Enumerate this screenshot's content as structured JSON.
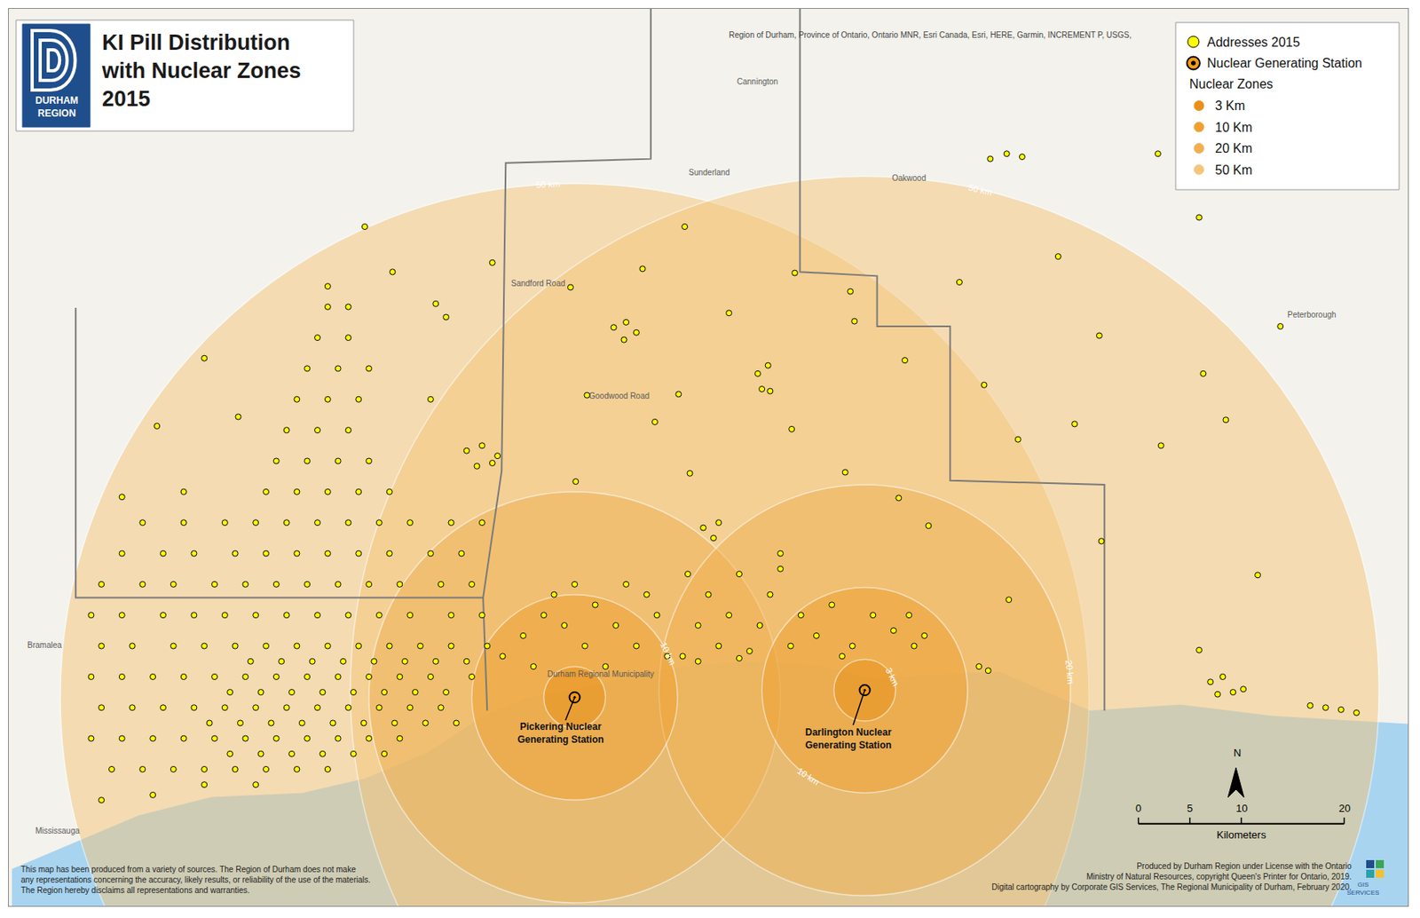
{
  "chart_data": {
    "type": "map",
    "title": [
      "KI Pill Distribution",
      "with Nuclear Zones",
      "2015"
    ],
    "logo": [
      "DURHAM",
      "REGION"
    ],
    "source": "Region of Durham, Province of Ontario, Ontario MNR, Esri Canada, Esri, HERE, Garmin, INCREMENT P, USGS,",
    "xlim": [
      -55,
      81
    ],
    "ylim": [
      -20.3,
      67
    ],
    "tick_labels": false,
    "addresses": {
      "name": "Addresses 2015",
      "color": "#ffff00",
      "marker": "circle",
      "points": [
        [
          -44,
          14
        ],
        [
          -40,
          14
        ],
        [
          -37,
          14
        ],
        [
          -33,
          14
        ],
        [
          -30,
          14
        ],
        [
          -27,
          14
        ],
        [
          -24,
          14
        ],
        [
          -21,
          14
        ],
        [
          -18,
          14
        ],
        [
          -14,
          14
        ],
        [
          -11,
          14
        ],
        [
          -46,
          11
        ],
        [
          -42,
          11
        ],
        [
          -39,
          11
        ],
        [
          -35,
          11
        ],
        [
          -32,
          11
        ],
        [
          -29,
          11
        ],
        [
          -26,
          11
        ],
        [
          -23,
          11
        ],
        [
          -20,
          11
        ],
        [
          -17,
          11
        ],
        [
          -13,
          11
        ],
        [
          -10,
          11
        ],
        [
          -47,
          8
        ],
        [
          -44,
          8
        ],
        [
          -40,
          8
        ],
        [
          -37,
          8
        ],
        [
          -34,
          8
        ],
        [
          -31,
          8
        ],
        [
          -28,
          8
        ],
        [
          -25,
          8
        ],
        [
          -22,
          8
        ],
        [
          -19,
          8
        ],
        [
          -16,
          8
        ],
        [
          -12,
          8
        ],
        [
          -9,
          8
        ],
        [
          -46,
          5
        ],
        [
          -43,
          5
        ],
        [
          -39,
          5
        ],
        [
          -36,
          5
        ],
        [
          -33,
          5
        ],
        [
          -30,
          5
        ],
        [
          -27,
          5
        ],
        [
          -24,
          5
        ],
        [
          -21,
          5
        ],
        [
          -18,
          5
        ],
        [
          -15,
          5
        ],
        [
          -12,
          5
        ],
        [
          -8.5,
          5
        ],
        [
          -47,
          2
        ],
        [
          -44,
          2
        ],
        [
          -41,
          2
        ],
        [
          -38,
          2
        ],
        [
          -35,
          2
        ],
        [
          -32,
          2
        ],
        [
          -29,
          2
        ],
        [
          -26,
          2
        ],
        [
          -23,
          2
        ],
        [
          -20,
          2
        ],
        [
          -17,
          2
        ],
        [
          -14,
          2
        ],
        [
          -10,
          2
        ],
        [
          -46,
          -1
        ],
        [
          -43,
          -1
        ],
        [
          -40,
          -1
        ],
        [
          -37,
          -1
        ],
        [
          -34,
          -1
        ],
        [
          -31,
          -1
        ],
        [
          -28,
          -1
        ],
        [
          -25,
          -1
        ],
        [
          -22,
          -1
        ],
        [
          -19,
          -1
        ],
        [
          -16,
          -1
        ],
        [
          -13,
          -1
        ],
        [
          -47,
          -4
        ],
        [
          -44,
          -4
        ],
        [
          -41,
          -4
        ],
        [
          -38,
          -4
        ],
        [
          -35,
          -4
        ],
        [
          -32,
          -4
        ],
        [
          -29,
          -4
        ],
        [
          -26,
          -4
        ],
        [
          -23,
          -4
        ],
        [
          -20,
          -4
        ],
        [
          -17,
          -4
        ],
        [
          -45,
          -7
        ],
        [
          -42,
          -7
        ],
        [
          -39,
          -7
        ],
        [
          -36,
          -7
        ],
        [
          -33,
          -7
        ],
        [
          -30,
          -7
        ],
        [
          -27,
          -7
        ],
        [
          -24,
          -7
        ],
        [
          -36,
          -8.5
        ],
        [
          -31,
          -8.5
        ],
        [
          -46,
          -10
        ],
        [
          -41,
          -9.5
        ],
        [
          -33.5,
          -5.5
        ],
        [
          -30.5,
          -5.5
        ],
        [
          -27.5,
          -5.5
        ],
        [
          -24.5,
          -5.5
        ],
        [
          -21.5,
          -5.5
        ],
        [
          -18.5,
          -5.5
        ],
        [
          -35.5,
          -2.5
        ],
        [
          -32.5,
          -2.5
        ],
        [
          -29.5,
          -2.5
        ],
        [
          -26.5,
          -2.5
        ],
        [
          -23.5,
          -2.5
        ],
        [
          -20.5,
          -2.5
        ],
        [
          -17.5,
          -2.5
        ],
        [
          -14.5,
          -2.5
        ],
        [
          -11.5,
          -2.5
        ],
        [
          -33.5,
          0.5
        ],
        [
          -30.5,
          0.5
        ],
        [
          -27.5,
          0.5
        ],
        [
          -24.5,
          0.5
        ],
        [
          -21.5,
          0.5
        ],
        [
          -18.5,
          0.5
        ],
        [
          -15.5,
          0.5
        ],
        [
          -12.5,
          0.5
        ],
        [
          -31.5,
          3.5
        ],
        [
          -28.5,
          3.5
        ],
        [
          -25.5,
          3.5
        ],
        [
          -22.5,
          3.5
        ],
        [
          -19.5,
          3.5
        ],
        [
          -16.5,
          3.5
        ],
        [
          -13.5,
          3.5
        ],
        [
          -10.5,
          3.5
        ],
        [
          -42,
          17
        ],
        [
          -38,
          17
        ],
        [
          -34,
          17
        ],
        [
          -31,
          17
        ],
        [
          -28,
          17
        ],
        [
          -25,
          17
        ],
        [
          -22,
          17
        ],
        [
          -19,
          17
        ],
        [
          -16,
          17
        ],
        [
          -12,
          17
        ],
        [
          -9,
          17
        ],
        [
          -38,
          20
        ],
        [
          -30,
          20
        ],
        [
          -27,
          20
        ],
        [
          -24,
          20
        ],
        [
          -21,
          20
        ],
        [
          -18,
          20
        ],
        [
          -29,
          23
        ],
        [
          -26,
          23
        ],
        [
          -23,
          23
        ],
        [
          -20,
          23
        ],
        [
          -28,
          26
        ],
        [
          -25,
          26
        ],
        [
          -22,
          26
        ],
        [
          -27,
          29
        ],
        [
          -24,
          29
        ],
        [
          -21,
          29
        ],
        [
          -26,
          32
        ],
        [
          -23,
          32
        ],
        [
          -20,
          32
        ],
        [
          -25,
          35
        ],
        [
          -22,
          35
        ],
        [
          -24,
          38
        ],
        [
          -22,
          38
        ],
        [
          -24,
          40
        ],
        [
          -32.7,
          27.3
        ],
        [
          -40.6,
          26.4
        ],
        [
          -44,
          19.5
        ],
        [
          -20.4,
          45.8
        ],
        [
          -17.7,
          41.4
        ],
        [
          -12.5,
          37
        ],
        [
          -14,
          29
        ],
        [
          -36,
          33
        ],
        [
          -10.5,
          24
        ],
        [
          -9,
          24.5
        ],
        [
          -7.5,
          23.5
        ],
        [
          -9.5,
          22.5
        ],
        [
          -8,
          22.8
        ],
        [
          3.8,
          36
        ],
        [
          5,
          36.5
        ],
        [
          6,
          35.5
        ],
        [
          4.8,
          34.8
        ],
        [
          17.8,
          31.5
        ],
        [
          18.8,
          32.3
        ],
        [
          18.2,
          30
        ],
        [
          19,
          29.8
        ],
        [
          12.5,
          16.5
        ],
        [
          14,
          17
        ],
        [
          13.5,
          15.5
        ],
        [
          -7,
          4
        ],
        [
          -5,
          6
        ],
        [
          -3,
          8
        ],
        [
          -1,
          7
        ],
        [
          1,
          5
        ],
        [
          2,
          9
        ],
        [
          4,
          7
        ],
        [
          6,
          5
        ],
        [
          8,
          8
        ],
        [
          9,
          4
        ],
        [
          -4,
          3
        ],
        [
          3,
          3
        ],
        [
          7,
          10
        ],
        [
          5,
          11
        ],
        [
          -2,
          10
        ],
        [
          0,
          11
        ],
        [
          10.5,
          4
        ],
        [
          12,
          7
        ],
        [
          13,
          10
        ],
        [
          11,
          12
        ],
        [
          14,
          5
        ],
        [
          15,
          8
        ],
        [
          16,
          12
        ],
        [
          17,
          4.5
        ],
        [
          18,
          7
        ],
        [
          19,
          10
        ],
        [
          20,
          14
        ],
        [
          21,
          5
        ],
        [
          22,
          8
        ],
        [
          12,
          3.5
        ],
        [
          16,
          3.8
        ],
        [
          20,
          12.5
        ],
        [
          23.5,
          6
        ],
        [
          25,
          9
        ],
        [
          27,
          5
        ],
        [
          29,
          8
        ],
        [
          31,
          6.5
        ],
        [
          33,
          5
        ],
        [
          32.5,
          8
        ],
        [
          26,
          4
        ],
        [
          34,
          6
        ],
        [
          39.3,
          3
        ],
        [
          40.2,
          2.6
        ],
        [
          61.8,
          1.5
        ],
        [
          63,
          2
        ],
        [
          64,
          0.5
        ],
        [
          65,
          0.8
        ],
        [
          62.5,
          0.3
        ],
        [
          71.5,
          -0.8
        ],
        [
          73,
          -1
        ],
        [
          74.5,
          -1.2
        ],
        [
          76,
          -1.5
        ],
        [
          68.6,
          36.1
        ],
        [
          40.4,
          52.4
        ],
        [
          42,
          52.9
        ],
        [
          43.5,
          52.6
        ],
        [
          56.7,
          52.9
        ],
        [
          60.7,
          46.7
        ],
        [
          47,
          42.9
        ],
        [
          37.4,
          40.4
        ],
        [
          26.8,
          39.5
        ],
        [
          27.2,
          36.6
        ],
        [
          32.1,
          32.8
        ],
        [
          51,
          35.2
        ],
        [
          61.1,
          31.5
        ],
        [
          63.3,
          27
        ],
        [
          57,
          24.5
        ],
        [
          66.4,
          11.9
        ],
        [
          60.7,
          4.6
        ],
        [
          42.2,
          9.5
        ],
        [
          34.4,
          16.7
        ],
        [
          31.5,
          19.4
        ],
        [
          26.3,
          21.9
        ],
        [
          10.7,
          45.8
        ],
        [
          6.6,
          41.7
        ],
        [
          -0.4,
          39.9
        ],
        [
          -8,
          42.3
        ],
        [
          -13.5,
          38.3
        ],
        [
          1.2,
          29.4
        ],
        [
          7.8,
          26.8
        ],
        [
          10.1,
          29.5
        ],
        [
          21.4,
          41.3
        ],
        [
          15,
          37.4
        ],
        [
          21.1,
          26.1
        ],
        [
          43.1,
          25.1
        ],
        [
          39.8,
          30.4
        ],
        [
          48.6,
          26.6
        ],
        [
          51.2,
          15.2
        ],
        [
          0.1,
          21
        ],
        [
          11.2,
          21.8
        ]
      ]
    },
    "stations": {
      "name": "Nuclear Generating Station",
      "color": "#f39c12",
      "marker": "circle-dot",
      "items": [
        {
          "label": [
            "Pickering Nuclear",
            "Generating Station"
          ],
          "x": 0,
          "y": 0
        },
        {
          "label": [
            "Darlington Nuclear",
            "Generating Station"
          ],
          "x": 28.2,
          "y": 0.7
        }
      ]
    },
    "zones": {
      "name": "Nuclear Zones",
      "items": [
        {
          "label": "3 Km",
          "radius": 3,
          "color": "#e8901a"
        },
        {
          "label": "10 Km",
          "radius": 10,
          "color": "#eea030"
        },
        {
          "label": "20 Km",
          "radius": 20,
          "color": "#f0b050"
        },
        {
          "label": "50 Km",
          "radius": 50,
          "color": "#f5c67a"
        }
      ]
    },
    "ring_labels": [
      {
        "text": "50 km",
        "station": 0,
        "radius": 50
      },
      {
        "text": "50 km",
        "station": 1,
        "radius": 50
      },
      {
        "text": "10 km",
        "station": 0,
        "radius": 10
      },
      {
        "text": "10 km",
        "station": 1,
        "radius": 10
      },
      {
        "text": "20 km",
        "station": 1,
        "radius": 20
      },
      {
        "text": "3 km",
        "station": 1,
        "radius": 3
      }
    ],
    "lake": {
      "color": "#a8d4f0",
      "points": [
        [
          -54.7,
          -16.7
        ],
        [
          -42.4,
          -11.5
        ],
        [
          -35.3,
          -9.7
        ],
        [
          -26.5,
          -9.3
        ],
        [
          -20.4,
          -7.9
        ],
        [
          -14.2,
          -5.3
        ],
        [
          -8.9,
          -1.8
        ],
        [
          -4.5,
          0
        ],
        [
          0.8,
          0.9
        ],
        [
          6.1,
          2.2
        ],
        [
          11.4,
          3.1
        ],
        [
          17.5,
          3.5
        ],
        [
          23.7,
          3.1
        ],
        [
          29,
          1.8
        ],
        [
          34.3,
          2.2
        ],
        [
          41.3,
          2.5
        ],
        [
          50.1,
          -1.3
        ],
        [
          58.9,
          -0.7
        ],
        [
          67.8,
          -1.8
        ],
        [
          81.4,
          -2.6
        ],
        [
          81.4,
          -20.3
        ],
        [
          -54.7,
          -20.3
        ]
      ]
    },
    "boundaries": {
      "color": "#7a7a7a",
      "lines": [
        [
          [
            -8.5,
            -1.3
          ],
          [
            -8.9,
            9.7
          ],
          [
            -7.1,
            22
          ],
          [
            -6.7,
            52
          ],
          [
            7.4,
            52.4
          ],
          [
            7.4,
            67
          ]
        ],
        [
          [
            21.9,
            67
          ],
          [
            21.9,
            41.4
          ],
          [
            29.4,
            41
          ],
          [
            29.4,
            36.1
          ],
          [
            36.5,
            36.1
          ],
          [
            36.5,
            21.1
          ],
          [
            51.5,
            20.7
          ],
          [
            51.5,
            -1.3
          ]
        ],
        [
          [
            -48.5,
            37.9
          ],
          [
            -48.5,
            9.7
          ],
          [
            -8.9,
            9.7
          ]
        ]
      ]
    },
    "places": [
      {
        "text": "Peterborough",
        "x": 71.7,
        "y": 37.2
      },
      {
        "text": "Mississauga",
        "x": -50.3,
        "y": -13
      },
      {
        "text": "Bramalea",
        "x": -51.5,
        "y": 5.1
      },
      {
        "text": "Goodwood Road",
        "x": 4.3,
        "y": 29.3
      },
      {
        "text": "Sandford Road",
        "x": -3.6,
        "y": 40.3
      },
      {
        "text": "Oakwood",
        "x": 32.5,
        "y": 50.5
      },
      {
        "text": "Sunderland",
        "x": 13.1,
        "y": 51.1
      },
      {
        "text": "Cannington",
        "x": 17.8,
        "y": 59.9
      },
      {
        "text": "Durham Regional Municipality",
        "x": 2.5,
        "y": 2.3
      }
    ],
    "scale_bar": {
      "ticks": [
        0,
        5,
        10,
        20
      ],
      "unit": "Kilometers"
    },
    "north": "N",
    "disclaimer": [
      "This map has been produced from a variety of sources. The Region of Durham does not make",
      "any representations concerning the accuracy, likely results, or reliability of the use of the materials.",
      "The Region hereby disclaims all representations and warranties."
    ],
    "credits": [
      "Produced by Durham Region under License with the Ontario",
      "Ministry of Natural Resources, copyright Queen's Printer for Ontario, 2019.",
      "Digital cartography by Corporate GIS Services, The Regional Municipality of Durham, February 2020."
    ],
    "gis_logo": [
      "GIS",
      "SERVICES"
    ]
  }
}
